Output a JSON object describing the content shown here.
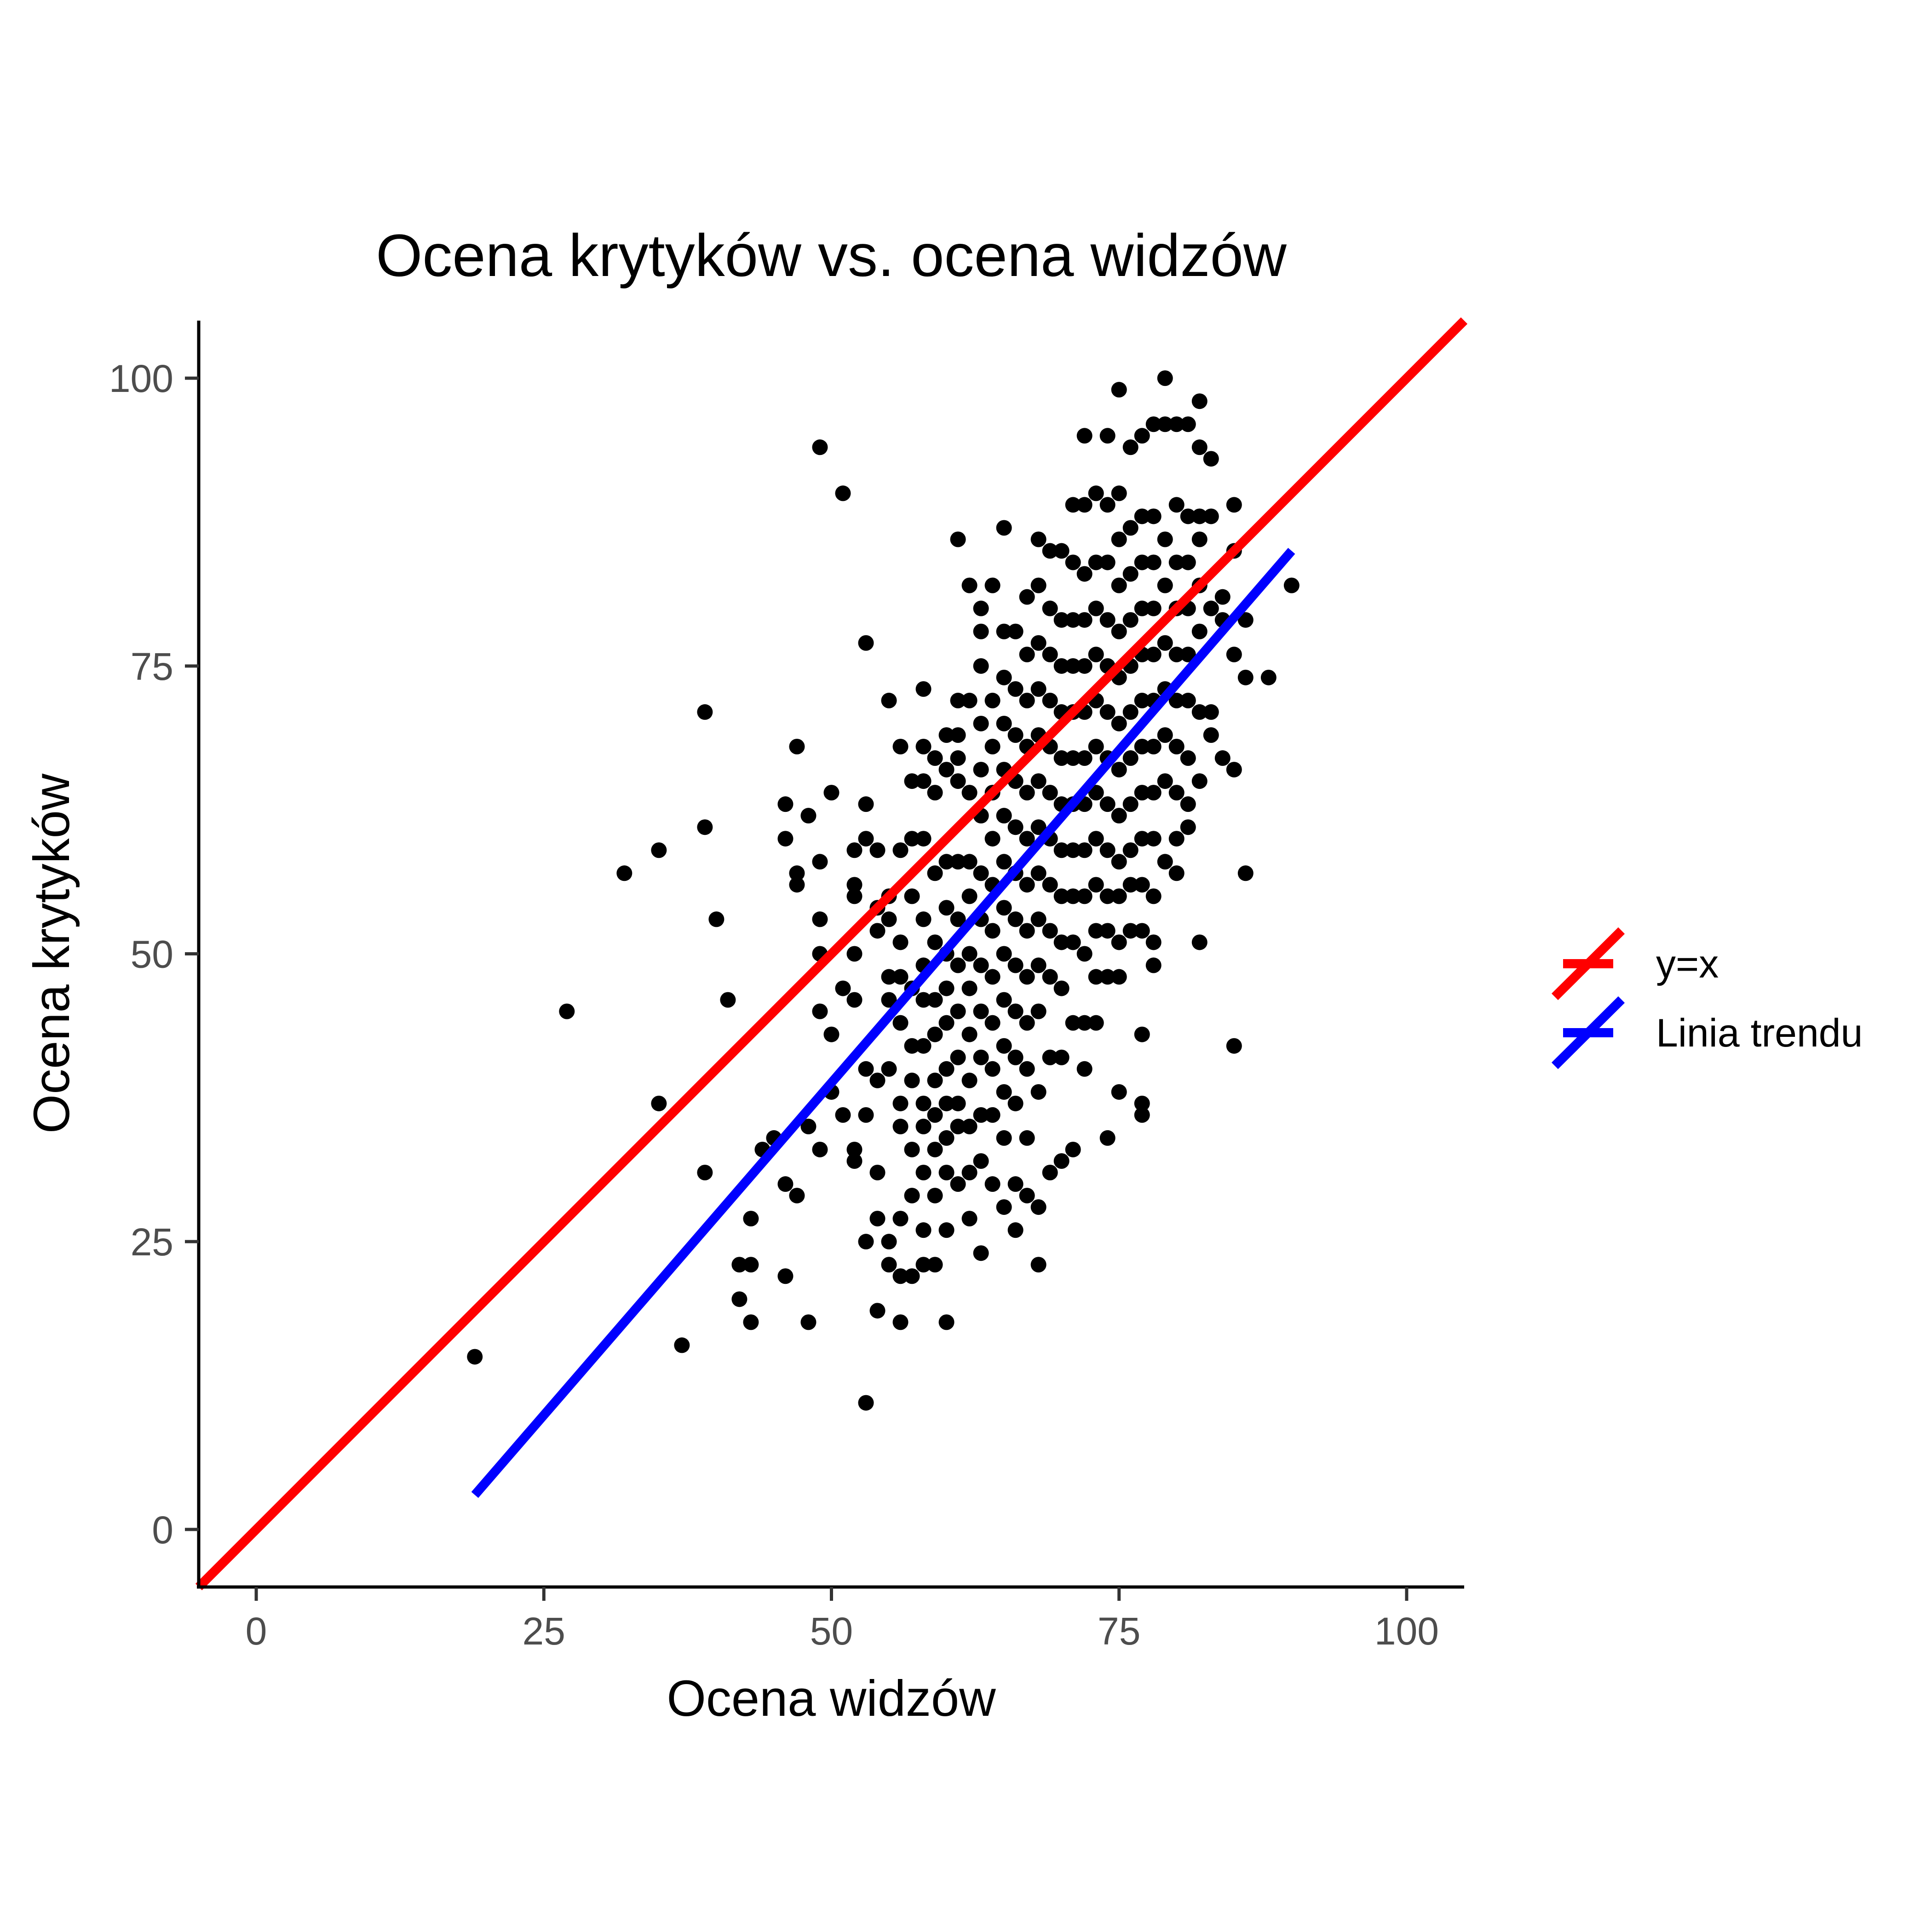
{
  "chart_data": {
    "type": "scatter",
    "title": "Ocena krytyków vs. ocena widzów",
    "xlabel": "Ocena widzów",
    "ylabel": "Ocena krytyków",
    "xlim": [
      -5,
      105
    ],
    "ylim": [
      -5,
      105
    ],
    "x_ticks": [
      0,
      25,
      50,
      75,
      100
    ],
    "y_ticks": [
      0,
      25,
      50,
      75,
      100
    ],
    "x_tick_labels": [
      "0",
      "25",
      "50",
      "75",
      "100"
    ],
    "y_tick_labels": [
      "0",
      "25",
      "50",
      "75",
      "100"
    ],
    "grid": false,
    "legend_position": "right",
    "point_color": "#000000",
    "points": [
      [
        19,
        15
      ],
      [
        27,
        45
      ],
      [
        32,
        57
      ],
      [
        35,
        59
      ],
      [
        35,
        37
      ],
      [
        37,
        16
      ],
      [
        39,
        71
      ],
      [
        39,
        61
      ],
      [
        39,
        31
      ],
      [
        40,
        53
      ],
      [
        41,
        46
      ],
      [
        42,
        23
      ],
      [
        42,
        20
      ],
      [
        43,
        23
      ],
      [
        43,
        18
      ],
      [
        43,
        27
      ],
      [
        44,
        33
      ],
      [
        45,
        34
      ],
      [
        46,
        63
      ],
      [
        46,
        60
      ],
      [
        46,
        30
      ],
      [
        46,
        22
      ],
      [
        47,
        68
      ],
      [
        47,
        57
      ],
      [
        47,
        56
      ],
      [
        47,
        29
      ],
      [
        48,
        62
      ],
      [
        48,
        18
      ],
      [
        48,
        35
      ],
      [
        49,
        94
      ],
      [
        49,
        58
      ],
      [
        49,
        53
      ],
      [
        49,
        50
      ],
      [
        49,
        45
      ],
      [
        49,
        33
      ],
      [
        50,
        64
      ],
      [
        50,
        43
      ],
      [
        50,
        38
      ],
      [
        51,
        90
      ],
      [
        51,
        47
      ],
      [
        51,
        36
      ],
      [
        52,
        59
      ],
      [
        52,
        56
      ],
      [
        52,
        55
      ],
      [
        52,
        50
      ],
      [
        52,
        46
      ],
      [
        52,
        33
      ],
      [
        52,
        32
      ],
      [
        53,
        77
      ],
      [
        53,
        63
      ],
      [
        53,
        60
      ],
      [
        53,
        40
      ],
      [
        53,
        36
      ],
      [
        53,
        25
      ],
      [
        53,
        11
      ],
      [
        54,
        59
      ],
      [
        54,
        54
      ],
      [
        54,
        52
      ],
      [
        54,
        39
      ],
      [
        54,
        31
      ],
      [
        54,
        27
      ],
      [
        54,
        19
      ],
      [
        55,
        72
      ],
      [
        55,
        55
      ],
      [
        55,
        53
      ],
      [
        55,
        48
      ],
      [
        55,
        46
      ],
      [
        55,
        40
      ],
      [
        55,
        25
      ],
      [
        55,
        23
      ],
      [
        56,
        68
      ],
      [
        56,
        59
      ],
      [
        56,
        51
      ],
      [
        56,
        48
      ],
      [
        56,
        44
      ],
      [
        56,
        37
      ],
      [
        56,
        35
      ],
      [
        56,
        27
      ],
      [
        56,
        22
      ],
      [
        56,
        18
      ],
      [
        57,
        65
      ],
      [
        57,
        60
      ],
      [
        57,
        55
      ],
      [
        57,
        47
      ],
      [
        57,
        42
      ],
      [
        57,
        39
      ],
      [
        57,
        33
      ],
      [
        57,
        29
      ],
      [
        57,
        22
      ],
      [
        58,
        73
      ],
      [
        58,
        68
      ],
      [
        58,
        65
      ],
      [
        58,
        60
      ],
      [
        58,
        53
      ],
      [
        58,
        49
      ],
      [
        58,
        46
      ],
      [
        58,
        42
      ],
      [
        58,
        37
      ],
      [
        58,
        35
      ],
      [
        58,
        31
      ],
      [
        58,
        26
      ],
      [
        58,
        23
      ],
      [
        59,
        67
      ],
      [
        59,
        64
      ],
      [
        59,
        57
      ],
      [
        59,
        51
      ],
      [
        59,
        46
      ],
      [
        59,
        43
      ],
      [
        59,
        39
      ],
      [
        59,
        36
      ],
      [
        59,
        33
      ],
      [
        59,
        29
      ],
      [
        59,
        23
      ],
      [
        60,
        69
      ],
      [
        60,
        66
      ],
      [
        60,
        58
      ],
      [
        60,
        54
      ],
      [
        60,
        50
      ],
      [
        60,
        47
      ],
      [
        60,
        44
      ],
      [
        60,
        40
      ],
      [
        60,
        37
      ],
      [
        60,
        34
      ],
      [
        60,
        31
      ],
      [
        60,
        26
      ],
      [
        60,
        18
      ],
      [
        61,
        86
      ],
      [
        61,
        72
      ],
      [
        61,
        69
      ],
      [
        61,
        67
      ],
      [
        61,
        65
      ],
      [
        61,
        58
      ],
      [
        61,
        53
      ],
      [
        61,
        49
      ],
      [
        61,
        45
      ],
      [
        61,
        41
      ],
      [
        61,
        37
      ],
      [
        61,
        35
      ],
      [
        61,
        30
      ],
      [
        62,
        82
      ],
      [
        62,
        72
      ],
      [
        62,
        64
      ],
      [
        62,
        58
      ],
      [
        62,
        55
      ],
      [
        62,
        50
      ],
      [
        62,
        47
      ],
      [
        62,
        43
      ],
      [
        62,
        39
      ],
      [
        62,
        35
      ],
      [
        62,
        31
      ],
      [
        62,
        27
      ],
      [
        63,
        80
      ],
      [
        63,
        78
      ],
      [
        63,
        75
      ],
      [
        63,
        70
      ],
      [
        63,
        66
      ],
      [
        63,
        62
      ],
      [
        63,
        57
      ],
      [
        63,
        53
      ],
      [
        63,
        49
      ],
      [
        63,
        45
      ],
      [
        63,
        41
      ],
      [
        63,
        36
      ],
      [
        63,
        32
      ],
      [
        63,
        24
      ],
      [
        64,
        82
      ],
      [
        64,
        72
      ],
      [
        64,
        68
      ],
      [
        64,
        64
      ],
      [
        64,
        60
      ],
      [
        64,
        56
      ],
      [
        64,
        52
      ],
      [
        64,
        48
      ],
      [
        64,
        44
      ],
      [
        64,
        40
      ],
      [
        64,
        36
      ],
      [
        64,
        30
      ],
      [
        65,
        87
      ],
      [
        65,
        78
      ],
      [
        65,
        74
      ],
      [
        65,
        70
      ],
      [
        65,
        66
      ],
      [
        65,
        62
      ],
      [
        65,
        58
      ],
      [
        65,
        54
      ],
      [
        65,
        50
      ],
      [
        65,
        46
      ],
      [
        65,
        42
      ],
      [
        65,
        38
      ],
      [
        65,
        34
      ],
      [
        65,
        28
      ],
      [
        66,
        78
      ],
      [
        66,
        73
      ],
      [
        66,
        69
      ],
      [
        66,
        65
      ],
      [
        66,
        61
      ],
      [
        66,
        57
      ],
      [
        66,
        53
      ],
      [
        66,
        49
      ],
      [
        66,
        45
      ],
      [
        66,
        41
      ],
      [
        66,
        37
      ],
      [
        66,
        30
      ],
      [
        66,
        26
      ],
      [
        67,
        81
      ],
      [
        67,
        76
      ],
      [
        67,
        72
      ],
      [
        67,
        68
      ],
      [
        67,
        64
      ],
      [
        67,
        60
      ],
      [
        67,
        56
      ],
      [
        67,
        52
      ],
      [
        67,
        48
      ],
      [
        67,
        44
      ],
      [
        67,
        40
      ],
      [
        67,
        34
      ],
      [
        67,
        29
      ],
      [
        68,
        86
      ],
      [
        68,
        82
      ],
      [
        68,
        77
      ],
      [
        68,
        73
      ],
      [
        68,
        69
      ],
      [
        68,
        65
      ],
      [
        68,
        61
      ],
      [
        68,
        57
      ],
      [
        68,
        53
      ],
      [
        68,
        49
      ],
      [
        68,
        45
      ],
      [
        68,
        38
      ],
      [
        68,
        28
      ],
      [
        68,
        23
      ],
      [
        69,
        85
      ],
      [
        69,
        80
      ],
      [
        69,
        76
      ],
      [
        69,
        72
      ],
      [
        69,
        68
      ],
      [
        69,
        64
      ],
      [
        69,
        60
      ],
      [
        69,
        56
      ],
      [
        69,
        52
      ],
      [
        69,
        48
      ],
      [
        69,
        41
      ],
      [
        69,
        31
      ],
      [
        70,
        85
      ],
      [
        70,
        79
      ],
      [
        70,
        75
      ],
      [
        70,
        71
      ],
      [
        70,
        67
      ],
      [
        70,
        63
      ],
      [
        70,
        59
      ],
      [
        70,
        55
      ],
      [
        70,
        51
      ],
      [
        70,
        47
      ],
      [
        70,
        41
      ],
      [
        70,
        32
      ],
      [
        71,
        89
      ],
      [
        71,
        84
      ],
      [
        71,
        79
      ],
      [
        71,
        75
      ],
      [
        71,
        71
      ],
      [
        71,
        67
      ],
      [
        71,
        63
      ],
      [
        71,
        59
      ],
      [
        71,
        55
      ],
      [
        71,
        51
      ],
      [
        71,
        44
      ],
      [
        71,
        33
      ],
      [
        72,
        95
      ],
      [
        72,
        89
      ],
      [
        72,
        83
      ],
      [
        72,
        79
      ],
      [
        72,
        75
      ],
      [
        72,
        71
      ],
      [
        72,
        67
      ],
      [
        72,
        63
      ],
      [
        72,
        59
      ],
      [
        72,
        55
      ],
      [
        72,
        50
      ],
      [
        72,
        44
      ],
      [
        72,
        40
      ],
      [
        73,
        90
      ],
      [
        73,
        84
      ],
      [
        73,
        80
      ],
      [
        73,
        76
      ],
      [
        73,
        72
      ],
      [
        73,
        68
      ],
      [
        73,
        64
      ],
      [
        73,
        60
      ],
      [
        73,
        56
      ],
      [
        73,
        52
      ],
      [
        73,
        48
      ],
      [
        73,
        44
      ],
      [
        74,
        95
      ],
      [
        74,
        89
      ],
      [
        74,
        84
      ],
      [
        74,
        79
      ],
      [
        74,
        75
      ],
      [
        74,
        71
      ],
      [
        74,
        67
      ],
      [
        74,
        63
      ],
      [
        74,
        59
      ],
      [
        74,
        55
      ],
      [
        74,
        52
      ],
      [
        74,
        48
      ],
      [
        74,
        34
      ],
      [
        75,
        99
      ],
      [
        75,
        90
      ],
      [
        75,
        86
      ],
      [
        75,
        82
      ],
      [
        75,
        78
      ],
      [
        75,
        74
      ],
      [
        75,
        70
      ],
      [
        75,
        66
      ],
      [
        75,
        62
      ],
      [
        75,
        58
      ],
      [
        75,
        55
      ],
      [
        75,
        51
      ],
      [
        75,
        48
      ],
      [
        75,
        38
      ],
      [
        76,
        94
      ],
      [
        76,
        87
      ],
      [
        76,
        83
      ],
      [
        76,
        79
      ],
      [
        76,
        75
      ],
      [
        76,
        71
      ],
      [
        76,
        67
      ],
      [
        76,
        63
      ],
      [
        76,
        59
      ],
      [
        76,
        56
      ],
      [
        76,
        52
      ],
      [
        77,
        95
      ],
      [
        77,
        88
      ],
      [
        77,
        84
      ],
      [
        77,
        80
      ],
      [
        77,
        76
      ],
      [
        77,
        72
      ],
      [
        77,
        68
      ],
      [
        77,
        64
      ],
      [
        77,
        60
      ],
      [
        77,
        56
      ],
      [
        77,
        52
      ],
      [
        77,
        43
      ],
      [
        77,
        37
      ],
      [
        77,
        36
      ],
      [
        78,
        96
      ],
      [
        78,
        88
      ],
      [
        78,
        84
      ],
      [
        78,
        80
      ],
      [
        78,
        76
      ],
      [
        78,
        72
      ],
      [
        78,
        68
      ],
      [
        78,
        64
      ],
      [
        78,
        60
      ],
      [
        78,
        55
      ],
      [
        78,
        51
      ],
      [
        78,
        49
      ],
      [
        79,
        100
      ],
      [
        79,
        96
      ],
      [
        79,
        86
      ],
      [
        79,
        82
      ],
      [
        79,
        77
      ],
      [
        79,
        73
      ],
      [
        79,
        69
      ],
      [
        79,
        65
      ],
      [
        79,
        58
      ],
      [
        80,
        96
      ],
      [
        80,
        89
      ],
      [
        80,
        84
      ],
      [
        80,
        80
      ],
      [
        80,
        76
      ],
      [
        80,
        72
      ],
      [
        80,
        68
      ],
      [
        80,
        64
      ],
      [
        80,
        60
      ],
      [
        80,
        57
      ],
      [
        81,
        96
      ],
      [
        81,
        88
      ],
      [
        81,
        84
      ],
      [
        81,
        80
      ],
      [
        81,
        76
      ],
      [
        81,
        72
      ],
      [
        81,
        67
      ],
      [
        81,
        63
      ],
      [
        81,
        61
      ],
      [
        82,
        98
      ],
      [
        82,
        94
      ],
      [
        82,
        88
      ],
      [
        82,
        86
      ],
      [
        82,
        82
      ],
      [
        82,
        78
      ],
      [
        82,
        71
      ],
      [
        82,
        65
      ],
      [
        82,
        51
      ],
      [
        83,
        93
      ],
      [
        83,
        88
      ],
      [
        83,
        80
      ],
      [
        83,
        71
      ],
      [
        83,
        69
      ],
      [
        84,
        81
      ],
      [
        84,
        79
      ],
      [
        84,
        67
      ],
      [
        85,
        89
      ],
      [
        85,
        85
      ],
      [
        85,
        76
      ],
      [
        85,
        66
      ],
      [
        85,
        42
      ],
      [
        86,
        79
      ],
      [
        86,
        74
      ],
      [
        86,
        57
      ],
      [
        88,
        74
      ],
      [
        90,
        82
      ]
    ],
    "series": [
      {
        "name": "y=x",
        "color": "#ff0000",
        "x": [
          -5,
          105
        ],
        "y": [
          -5,
          105
        ]
      },
      {
        "name": "Linia trendu",
        "color": "#0000ff",
        "x": [
          19,
          90
        ],
        "y": [
          3,
          85
        ]
      }
    ]
  }
}
